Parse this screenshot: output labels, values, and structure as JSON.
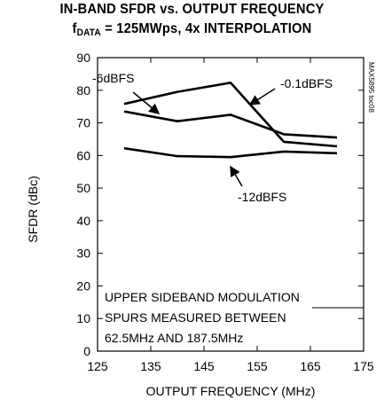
{
  "chart_data": {
    "type": "line",
    "title_line1": "IN-BAND SFDR vs. OUTPUT FREQUENCY",
    "title_line2_main": "f",
    "title_line2_sub": "DATA",
    "title_line2_rest": " = 125MWps, 4x INTERPOLATION",
    "xlabel": "OUTPUT FREQUENCY (MHz)",
    "ylabel": "SFDR (dBc)",
    "xlim": [
      125,
      175
    ],
    "ylim": [
      0,
      90
    ],
    "xticks": [
      "125",
      "135",
      "145",
      "155",
      "165",
      "175"
    ],
    "yticks": [
      "0",
      "10",
      "20",
      "30",
      "40",
      "50",
      "60",
      "70",
      "80",
      "90"
    ],
    "grid": false,
    "series": [
      {
        "name": "-0.1dBFS",
        "x": [
          130,
          140,
          150,
          160,
          170
        ],
        "y": [
          75.8,
          79.5,
          82.3,
          64.2,
          62.8
        ]
      },
      {
        "name": "-6dBFS",
        "x": [
          130,
          140,
          150,
          160,
          170
        ],
        "y": [
          73.5,
          70.5,
          72.5,
          66.5,
          65.5
        ]
      },
      {
        "name": "-12dBFS",
        "x": [
          130,
          140,
          150,
          160,
          170
        ],
        "y": [
          62.2,
          59.8,
          59.5,
          61.2,
          60.7
        ]
      }
    ],
    "annotation_lines": [
      "UPPER SIDEBAND MODULATION",
      "SPURS MEASURED BETWEEN",
      "62.5MHz AND 187.5MHz"
    ],
    "figure_code": "MAX5895 toc08"
  }
}
